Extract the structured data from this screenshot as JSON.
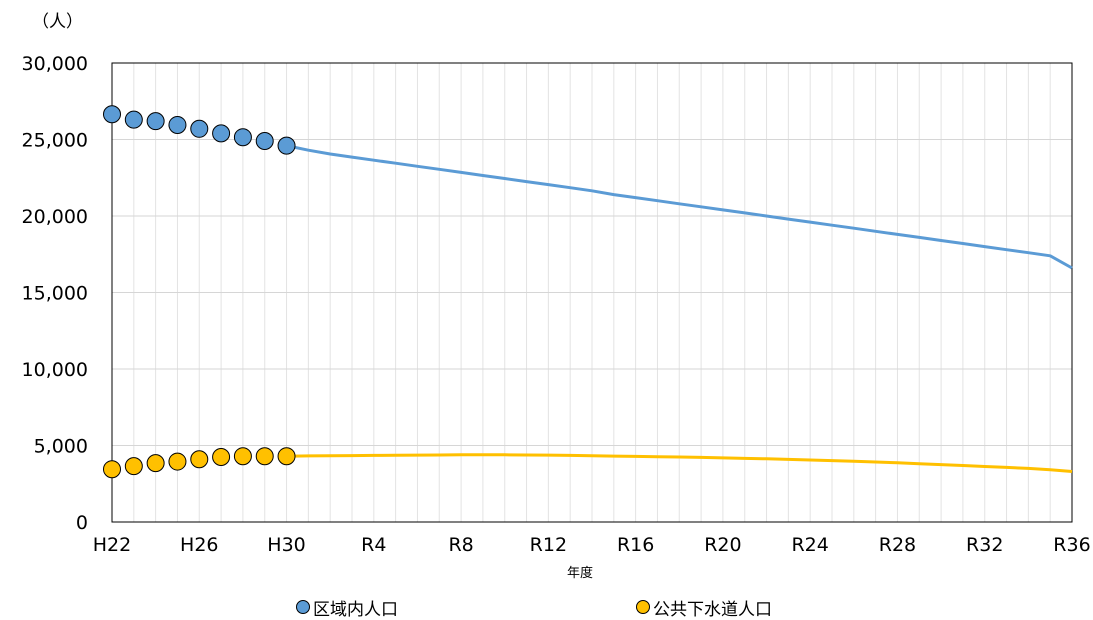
{
  "chart_data": {
    "type": "line",
    "unit_label": "（人）",
    "xlabel": "年度",
    "ylabel": "",
    "ylim": [
      0,
      30000
    ],
    "yticks": [
      0,
      5000,
      10000,
      15000,
      20000,
      25000,
      30000
    ],
    "ytick_labels": [
      "0",
      "5,000",
      "10,000",
      "15,000",
      "20,000",
      "25,000",
      "30,000"
    ],
    "categories": [
      "H22",
      "H23",
      "H24",
      "H25",
      "H26",
      "H27",
      "H28",
      "H29",
      "H30",
      "R1",
      "R2",
      "R3",
      "R4",
      "R5",
      "R6",
      "R7",
      "R8",
      "R9",
      "R10",
      "R11",
      "R12",
      "R13",
      "R14",
      "R15",
      "R16",
      "R17",
      "R18",
      "R19",
      "R20",
      "R21",
      "R22",
      "R23",
      "R24",
      "R25",
      "R26",
      "R27",
      "R28",
      "R29",
      "R30",
      "R31",
      "R32",
      "R33",
      "R34",
      "R35",
      "R36"
    ],
    "xtick_labels": [
      "H22",
      "",
      "",
      "",
      "H26",
      "",
      "",
      "",
      "H30",
      "",
      "",
      "",
      "R4",
      "",
      "",
      "",
      "R8",
      "",
      "",
      "",
      "R12",
      "",
      "",
      "",
      "R16",
      "",
      "",
      "",
      "R20",
      "",
      "",
      "",
      "R24",
      "",
      "",
      "",
      "R28",
      "",
      "",
      "",
      "R32",
      "",
      "",
      "",
      "R36"
    ],
    "grid": {
      "horizontal": true,
      "vertical": true
    },
    "legend_position": "bottom",
    "series": [
      {
        "name": "区域内人口",
        "color": "#5b9bd5",
        "marker_count": 9,
        "values": [
          26650,
          26300,
          26200,
          25950,
          25700,
          25400,
          25150,
          24900,
          24600,
          24300,
          24050,
          23850,
          23650,
          23450,
          23250,
          23050,
          22850,
          22650,
          22450,
          22250,
          22050,
          21850,
          21650,
          21400,
          21200,
          21000,
          20800,
          20600,
          20400,
          20200,
          20000,
          19800,
          19600,
          19400,
          19200,
          19000,
          18800,
          18600,
          18400,
          18200,
          18000,
          17800,
          17600,
          17400,
          16600
        ]
      },
      {
        "name": "公共下水道人口",
        "color": "#ffc000",
        "marker_count": 9,
        "values": [
          3450,
          3650,
          3850,
          3950,
          4100,
          4250,
          4300,
          4300,
          4300,
          4320,
          4330,
          4340,
          4350,
          4360,
          4370,
          4380,
          4390,
          4390,
          4390,
          4380,
          4370,
          4350,
          4330,
          4310,
          4290,
          4270,
          4250,
          4220,
          4190,
          4160,
          4130,
          4090,
          4050,
          4010,
          3970,
          3920,
          3870,
          3810,
          3750,
          3690,
          3630,
          3570,
          3500,
          3420,
          3300
        ]
      }
    ]
  }
}
